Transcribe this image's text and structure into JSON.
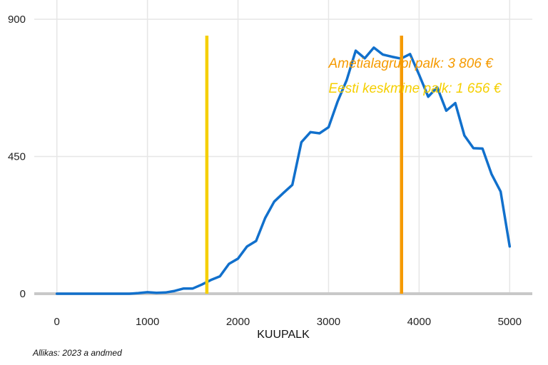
{
  "chart_data": {
    "type": "line",
    "title": "",
    "xlabel": "KUUPALK",
    "ylabel": "",
    "xlim": [
      -250,
      5250
    ],
    "ylim": [
      0,
      900
    ],
    "xticks": [
      0,
      1000,
      2000,
      3000,
      4000,
      5000
    ],
    "yticks": [
      0,
      450,
      900
    ],
    "x_tick_labels": [
      "0",
      "1000",
      "2000",
      "3000",
      "4000",
      "5000"
    ],
    "y_tick_labels": [
      "0",
      "450",
      "900"
    ],
    "grid": true,
    "series": [
      {
        "color": "#1170cc",
        "x": [
          0,
          100,
          200,
          300,
          400,
          500,
          600,
          700,
          800,
          900,
          1000,
          1100,
          1200,
          1300,
          1400,
          1500,
          1600,
          1700,
          1800,
          1900,
          2000,
          2100,
          2200,
          2300,
          2400,
          2500,
          2600,
          2700,
          2800,
          2900,
          3000,
          3100,
          3200,
          3300,
          3400,
          3500,
          3600,
          3700,
          3800,
          3900,
          4000,
          4100,
          4200,
          4300,
          4400,
          4500,
          4600,
          4700,
          4800,
          4900,
          5000
        ],
        "values": [
          0,
          0,
          0,
          0,
          0,
          0,
          0,
          0,
          0,
          2,
          5,
          3,
          4,
          9,
          17,
          17,
          30,
          45,
          57,
          98,
          115,
          155,
          173,
          248,
          302,
          330,
          357,
          497,
          530,
          526,
          546,
          630,
          700,
          797,
          772,
          807,
          784,
          777,
          771,
          786,
          718,
          646,
          677,
          600,
          625,
          519,
          477,
          476,
          392,
          335,
          155
        ]
      }
    ],
    "reference_lines": [
      {
        "x": 1656,
        "color": "#f5cf00",
        "label": "Eesti keskmine palk: 1 656 €"
      },
      {
        "x": 3806,
        "color": "#f59a00",
        "label": "Ametialagrupi palk: 3 806 €"
      }
    ],
    "caption": "Allikas: 2023 a andmed"
  }
}
